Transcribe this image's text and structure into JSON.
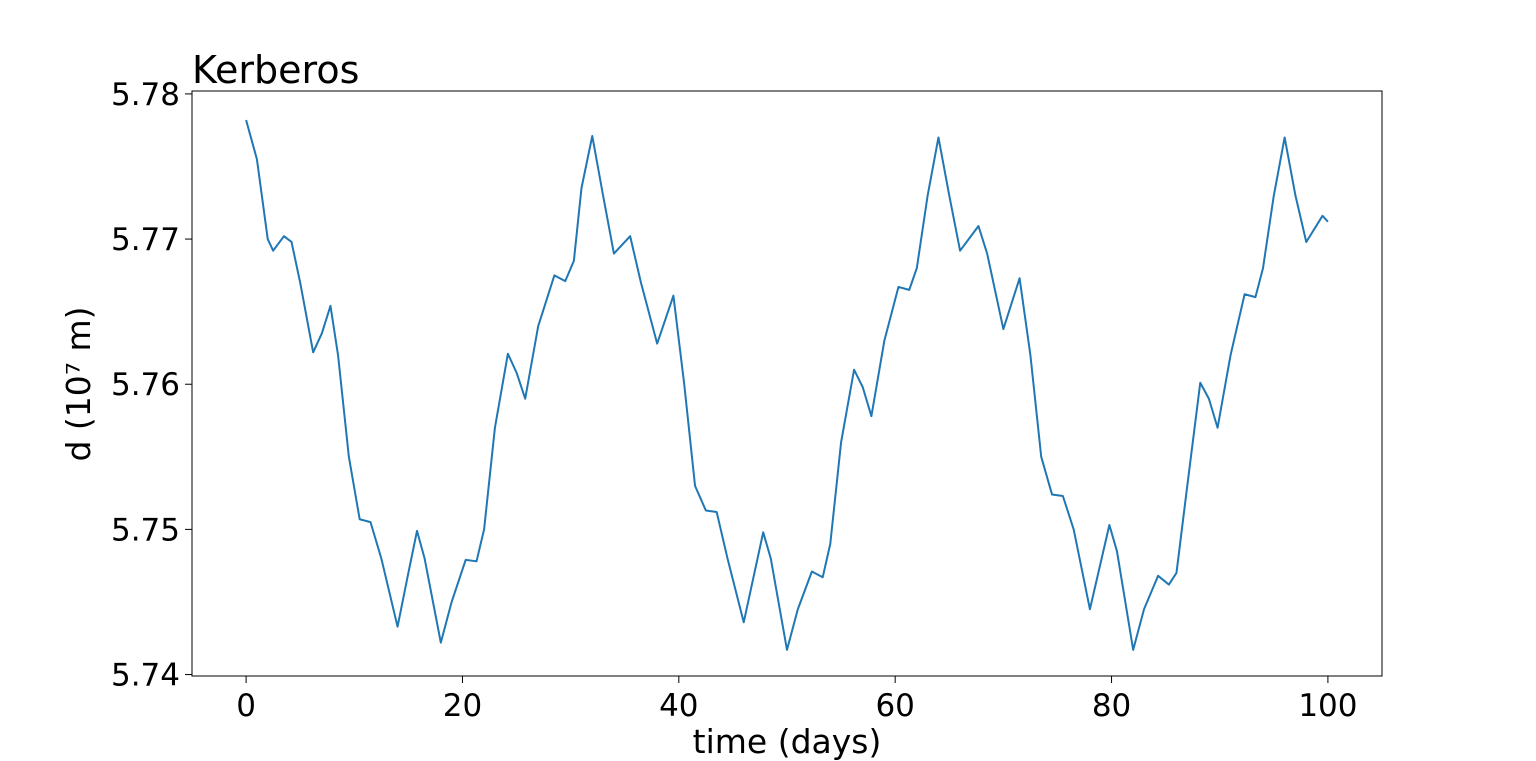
{
  "chart_data": {
    "type": "line",
    "title": "Kerberos",
    "x_label": "time (days)",
    "y_label": "d (10⁷ m)",
    "xlim": [
      -5,
      105
    ],
    "ylim": [
      5.7399,
      5.7802
    ],
    "xticks": [
      0,
      20,
      40,
      60,
      80,
      100
    ],
    "yticks": [
      5.74,
      5.75,
      5.76,
      5.77,
      5.78
    ],
    "grid": false,
    "series": [
      {
        "name": "Kerberos",
        "color": "#1f77b4",
        "x": [
          0,
          1,
          2,
          2.5,
          3.5,
          4.2,
          5,
          6.2,
          7,
          7.8,
          8.5,
          9.5,
          10.5,
          11.5,
          12.5,
          14,
          15,
          15.8,
          16.5,
          18,
          19,
          20.3,
          21.3,
          22,
          23,
          24.2,
          25,
          25.8,
          27,
          28.5,
          29.5,
          30.3,
          31,
          32,
          33,
          34,
          35.5,
          36.5,
          38,
          39.5,
          40.5,
          41.5,
          42.5,
          43.5,
          44.5,
          46,
          47.8,
          48.5,
          50,
          51,
          52.3,
          53.3,
          54,
          55,
          56.2,
          57,
          57.8,
          59,
          60.3,
          61.3,
          62,
          63,
          64,
          65,
          66,
          67.7,
          68.5,
          70,
          71.5,
          72.5,
          73.5,
          74.5,
          75.5,
          76.5,
          78,
          79.8,
          80.5,
          82,
          83,
          84.3,
          85.3,
          86,
          87,
          88.2,
          89,
          89.8,
          91,
          92.3,
          93.3,
          94,
          95,
          96,
          97,
          98,
          99.5,
          100
        ],
        "values": [
          5.7782,
          5.7755,
          5.77,
          5.7692,
          5.7702,
          5.7698,
          5.767,
          5.7622,
          5.7635,
          5.7654,
          5.762,
          5.755,
          5.7507,
          5.7505,
          5.748,
          5.7433,
          5.747,
          5.7499,
          5.748,
          5.7422,
          5.745,
          5.7479,
          5.7478,
          5.75,
          5.757,
          5.7621,
          5.7608,
          5.759,
          5.764,
          5.7675,
          5.7671,
          5.7685,
          5.7735,
          5.7771,
          5.773,
          5.769,
          5.7702,
          5.767,
          5.7628,
          5.7661,
          5.76,
          5.753,
          5.7513,
          5.7512,
          5.748,
          5.7436,
          5.7498,
          5.748,
          5.7417,
          5.7445,
          5.7471,
          5.7467,
          5.749,
          5.756,
          5.761,
          5.7598,
          5.7578,
          5.763,
          5.7667,
          5.7665,
          5.768,
          5.773,
          5.777,
          5.773,
          5.7692,
          5.7709,
          5.769,
          5.7638,
          5.7673,
          5.762,
          5.755,
          5.7524,
          5.7523,
          5.75,
          5.7445,
          5.7503,
          5.7485,
          5.7417,
          5.7445,
          5.7468,
          5.7462,
          5.747,
          5.753,
          5.7601,
          5.759,
          5.757,
          5.762,
          5.7662,
          5.766,
          5.768,
          5.773,
          5.777,
          5.773,
          5.7698,
          5.7716,
          5.7712
        ]
      }
    ]
  }
}
